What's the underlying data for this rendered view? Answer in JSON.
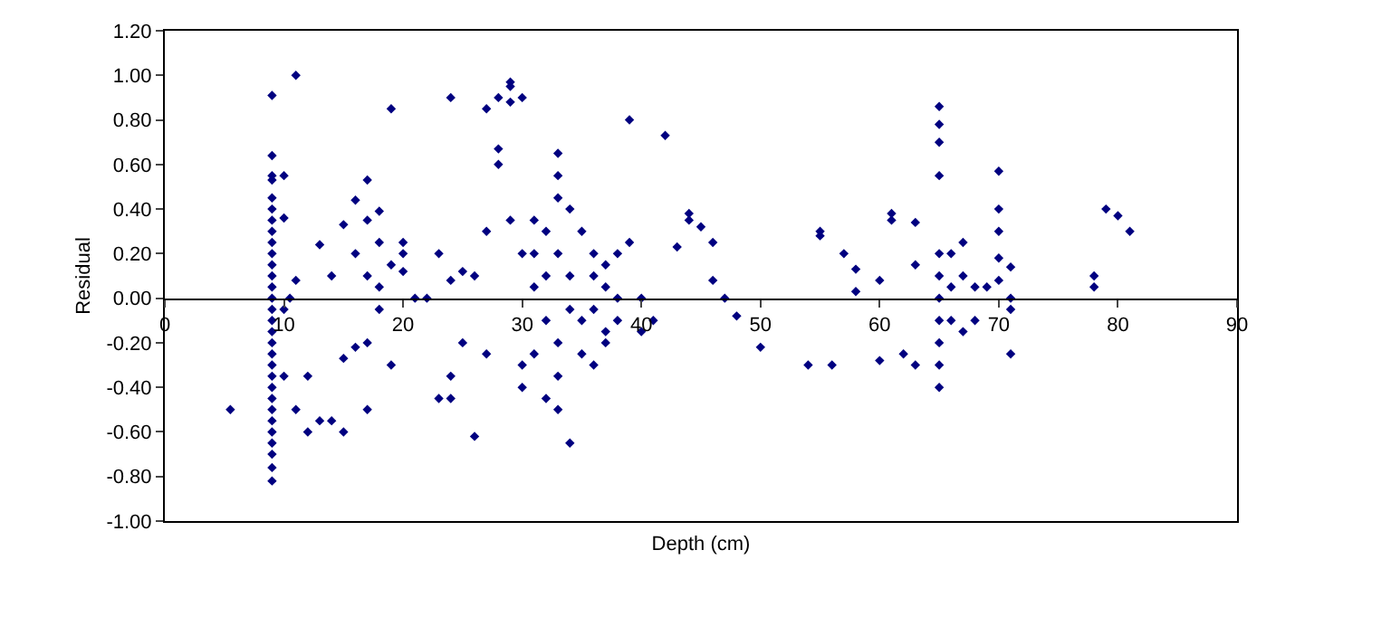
{
  "chart_data": {
    "type": "scatter",
    "xlabel": "Depth (cm)",
    "ylabel": "Residual",
    "x": [
      5.5,
      9,
      9,
      9,
      9,
      9,
      9,
      9,
      9,
      9,
      9,
      9,
      9,
      9,
      9,
      9,
      9,
      9,
      9,
      9,
      9,
      9,
      9,
      9,
      9,
      9,
      9,
      9,
      9,
      9,
      9,
      10,
      10,
      10,
      10,
      11,
      10.5,
      11,
      11,
      12,
      12,
      13,
      13,
      14,
      14,
      15,
      15,
      15,
      16,
      16,
      16,
      17,
      17,
      17,
      17,
      17,
      18,
      18,
      18,
      18,
      19,
      19,
      19,
      20,
      20,
      20,
      21,
      22,
      23,
      23,
      24,
      24,
      24,
      24,
      25,
      25,
      26,
      26,
      27,
      27,
      27,
      28,
      28,
      28,
      29,
      29,
      29,
      30,
      29,
      30,
      30,
      30,
      31,
      31,
      31,
      31,
      32,
      32,
      32,
      32,
      33,
      33,
      33,
      33,
      33,
      33,
      33,
      34,
      34,
      34,
      34,
      35,
      35,
      35,
      36,
      36,
      36,
      36,
      37,
      37,
      37,
      37,
      38,
      38,
      38,
      39,
      39,
      40,
      40,
      41,
      42,
      43,
      44,
      44,
      45,
      46,
      46,
      47,
      48,
      50,
      54,
      55,
      55,
      56,
      57,
      58,
      58,
      60,
      60,
      61,
      61,
      62,
      63,
      63,
      63,
      65,
      65,
      65,
      65,
      65,
      65,
      65,
      65,
      65,
      65,
      65,
      66,
      66,
      66,
      67,
      67,
      67,
      68,
      68,
      69,
      70,
      70,
      70,
      70,
      70,
      71,
      71,
      71,
      71,
      78,
      78,
      79,
      80,
      81
    ],
    "values": [
      -0.5,
      0.91,
      0.64,
      0.55,
      0.53,
      0.45,
      0.4,
      0.35,
      0.3,
      0.25,
      0.2,
      0.15,
      0.1,
      0.05,
      0,
      -0.05,
      -0.1,
      -0.15,
      -0.2,
      -0.25,
      -0.3,
      -0.35,
      -0.4,
      -0.45,
      -0.5,
      -0.55,
      -0.6,
      -0.65,
      -0.7,
      -0.76,
      -0.82,
      0.55,
      0.36,
      -0.05,
      -0.35,
      1.0,
      0.0,
      0.08,
      -0.5,
      -0.35,
      -0.6,
      0.24,
      -0.55,
      -0.55,
      0.1,
      0.33,
      -0.6,
      -0.27,
      0.44,
      0.2,
      -0.22,
      0.53,
      0.35,
      0.1,
      -0.2,
      -0.5,
      0.39,
      0.25,
      0.05,
      -0.05,
      0.85,
      0.15,
      -0.3,
      0.25,
      0.2,
      0.12,
      0.0,
      0.0,
      0.2,
      -0.45,
      0.9,
      0.08,
      -0.35,
      -0.45,
      -0.2,
      0.12,
      -0.62,
      0.1,
      0.3,
      -0.25,
      0.85,
      0.6,
      0.67,
      0.9,
      0.95,
      0.88,
      0.97,
      0.9,
      0.35,
      0.2,
      -0.3,
      -0.4,
      0.35,
      0.05,
      -0.25,
      0.2,
      0.1,
      -0.1,
      -0.45,
      0.3,
      0.45,
      0.55,
      0.65,
      0.2,
      -0.2,
      -0.35,
      -0.5,
      -0.65,
      0.4,
      0.1,
      -0.05,
      0.3,
      -0.1,
      -0.25,
      0.2,
      0.1,
      -0.05,
      -0.3,
      0.15,
      0.05,
      -0.15,
      -0.2,
      0.2,
      0.0,
      -0.1,
      0.8,
      0.25,
      0.0,
      -0.15,
      -0.1,
      0.73,
      0.23,
      0.35,
      0.38,
      0.32,
      0.25,
      0.08,
      0.0,
      -0.08,
      -0.22,
      -0.3,
      0.28,
      0.3,
      -0.3,
      0.2,
      0.13,
      0.03,
      0.08,
      -0.28,
      0.35,
      0.38,
      -0.25,
      -0.3,
      0.34,
      0.15,
      0.86,
      0.78,
      0.7,
      0.55,
      0.2,
      0.1,
      0.0,
      -0.1,
      -0.2,
      -0.3,
      -0.4,
      0.2,
      -0.1,
      0.05,
      0.25,
      0.1,
      -0.15,
      0.05,
      -0.1,
      0.05,
      0.18,
      0.3,
      0.4,
      0.57,
      0.08,
      0.0,
      -0.05,
      -0.25,
      0.14,
      0.05,
      0.1,
      0.4,
      0.37,
      0.3
    ],
    "color": "#000080",
    "marker": "diamond",
    "xlim": [
      0,
      90
    ],
    "xticks": [
      0,
      10,
      20,
      30,
      40,
      50,
      60,
      70,
      80,
      90
    ],
    "ylim": [
      -1.0,
      1.2
    ],
    "yticks": [
      {
        "value": -1.0,
        "label": "-1.00"
      },
      {
        "value": -0.8,
        "label": "-0.80"
      },
      {
        "value": -0.6,
        "label": "-0.60"
      },
      {
        "value": -0.4,
        "label": "-0.40"
      },
      {
        "value": -0.2,
        "label": "-0.20"
      },
      {
        "value": 0,
        "label": "0.00"
      },
      {
        "value": 0.2,
        "label": "0.20"
      },
      {
        "value": 0.4,
        "label": "0.40"
      },
      {
        "value": 0.6,
        "label": "0.60"
      },
      {
        "value": 0.8,
        "label": "0.80"
      },
      {
        "value": 1.0,
        "label": "1.00"
      },
      {
        "value": 1.2,
        "label": "1.20"
      }
    ]
  }
}
